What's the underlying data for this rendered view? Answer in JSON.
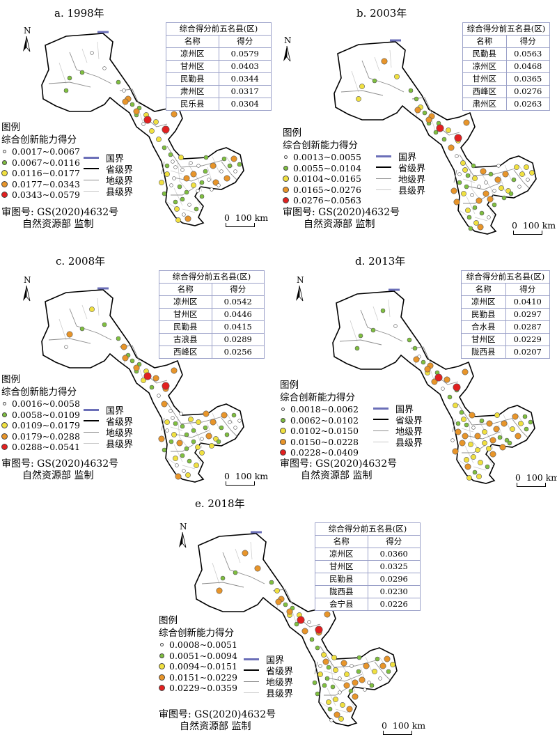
{
  "panels": [
    {
      "title": "a. 1998年",
      "table": {
        "title": "综合得分前五名县(区)",
        "col_name": "名称",
        "col_score": "得分",
        "rows": [
          [
            "凉州区",
            "0.0579"
          ],
          [
            "甘州区",
            "0.0403"
          ],
          [
            "民勤县",
            "0.0344"
          ],
          [
            "肃州区",
            "0.0317"
          ],
          [
            "民乐县",
            "0.0304"
          ]
        ]
      },
      "legend_classes": [
        "0.0017~0.0067",
        "0.0067~0.0116",
        "0.0116~0.0177",
        "0.0177~0.0343",
        "0.0343~0.0579"
      ],
      "class_share": [
        0.25,
        0.35,
        0.25,
        0.12,
        0.03
      ]
    },
    {
      "title": "b. 2003年",
      "table": {
        "title": "综合得分前五名县(区)",
        "col_name": "名称",
        "col_score": "得分",
        "rows": [
          [
            "民勤县",
            "0.0563"
          ],
          [
            "凉州区",
            "0.0468"
          ],
          [
            "甘州区",
            "0.0365"
          ],
          [
            "西峰区",
            "0.0276"
          ],
          [
            "肃州区",
            "0.0263"
          ]
        ]
      },
      "legend_classes": [
        "0.0013~0.0055",
        "0.0055~0.0104",
        "0.0104~0.0165",
        "0.0165~0.0276",
        "0.0276~0.0563"
      ],
      "class_share": [
        0.22,
        0.28,
        0.3,
        0.16,
        0.04
      ]
    },
    {
      "title": "c. 2008年",
      "table": {
        "title": "综合得分前五名县(区)",
        "col_name": "名称",
        "col_score": "得分",
        "rows": [
          [
            "凉州区",
            "0.0542"
          ],
          [
            "甘州区",
            "0.0446"
          ],
          [
            "民勤县",
            "0.0415"
          ],
          [
            "古浪县",
            "0.0289"
          ],
          [
            "西峰区",
            "0.0256"
          ]
        ]
      },
      "legend_classes": [
        "0.0016~0.0058",
        "0.0058~0.0109",
        "0.0109~0.0179",
        "0.0179~0.0288",
        "0.0288~0.0541"
      ],
      "class_share": [
        0.22,
        0.3,
        0.25,
        0.19,
        0.04
      ]
    },
    {
      "title": "d. 2013年",
      "table": {
        "title": "综合得分前五名县(区)",
        "col_name": "名称",
        "col_score": "得分",
        "rows": [
          [
            "凉州区",
            "0.0410"
          ],
          [
            "民勤县",
            "0.0297"
          ],
          [
            "合水县",
            "0.0287"
          ],
          [
            "甘州区",
            "0.0229"
          ],
          [
            "陇西县",
            "0.0207"
          ]
        ]
      },
      "legend_classes": [
        "0.0018~0.0062",
        "0.0062~0.0102",
        "0.0102~0.0150",
        "0.0150~0.0228",
        "0.0228~0.0409"
      ],
      "class_share": [
        0.15,
        0.3,
        0.25,
        0.25,
        0.05
      ]
    },
    {
      "title": "e. 2018年",
      "table": {
        "title": "综合得分前五名县(区)",
        "col_name": "名称",
        "col_score": "得分",
        "rows": [
          [
            "凉州区",
            "0.0360"
          ],
          [
            "甘州区",
            "0.0325"
          ],
          [
            "民勤县",
            "0.0296"
          ],
          [
            "陇西县",
            "0.0230"
          ],
          [
            "会宁县",
            "0.0226"
          ]
        ]
      },
      "legend_classes": [
        "0.0008~0.0051",
        "0.0051~0.0094",
        "0.0094~0.0151",
        "0.0151~0.0229",
        "0.0229~0.0359"
      ],
      "class_share": [
        0.15,
        0.3,
        0.28,
        0.22,
        0.05
      ]
    }
  ],
  "common": {
    "legend_title": "图例",
    "legend_subtitle": "综合创新能力得分",
    "boundary_legend": [
      "国界",
      "省级界",
      "地级界",
      "县级界"
    ],
    "review_number": "审图号: GS(2020)4632号",
    "review_org": "自然资源部 监制",
    "scale_label": "0  100 km",
    "north_label": "N"
  },
  "colors": {
    "class_colors": [
      "#ffffff",
      "#7fbf3f",
      "#f0e040",
      "#e8952a",
      "#e22020"
    ],
    "national_border": "#6b6fb8",
    "province_border": "#000000",
    "prefecture_border": "#8c8c8c",
    "county_border": "#c8c8c8",
    "land_fill": "#ffffff"
  }
}
